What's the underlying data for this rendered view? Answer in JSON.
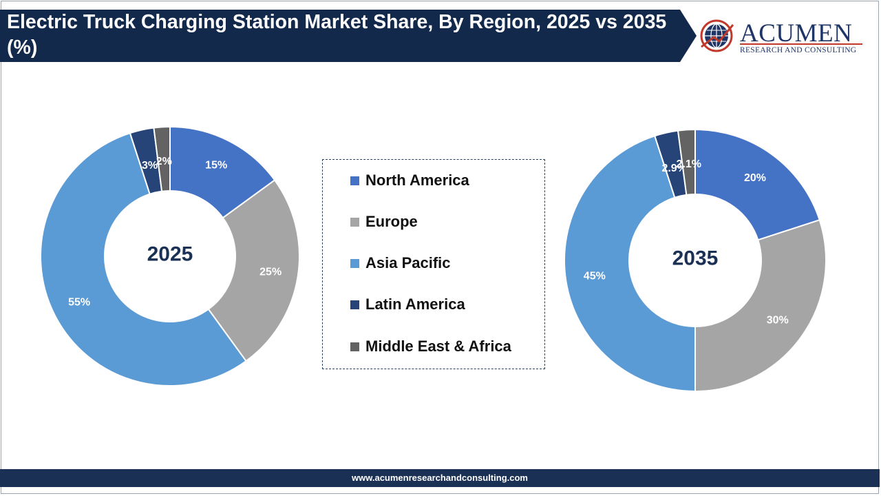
{
  "header": {
    "title": "Electric Truck Charging Station Market Share, By Region, 2025 vs 2035 (%)",
    "banner_color": "#13294b"
  },
  "logo": {
    "name": "ACUMEN",
    "tagline": "RESEARCH AND CONSULTING",
    "icon": "globe-icon",
    "colors": {
      "navy": "#1e3566",
      "red": "#c0392b"
    }
  },
  "chart_data": [
    {
      "type": "pie",
      "variant": "donut",
      "center_label": "2025",
      "categories": [
        "North America",
        "Europe",
        "Asia Pacific",
        "Latin America",
        "Middle East & Africa"
      ],
      "values": [
        15,
        25,
        55,
        3,
        2
      ],
      "labels": [
        "15%",
        "25%",
        "55%",
        "3%",
        "2%"
      ],
      "colors": [
        "#4472c4",
        "#a5a5a5",
        "#5b9bd5",
        "#264478",
        "#636363"
      ]
    },
    {
      "type": "pie",
      "variant": "donut",
      "center_label": "2035",
      "categories": [
        "North America",
        "Europe",
        "Asia Pacific",
        "Latin America",
        "Middle East & Africa"
      ],
      "values": [
        20,
        30,
        45,
        2.9,
        2.1
      ],
      "labels": [
        "20%",
        "30%",
        "45%",
        "2.9%",
        "2.1%"
      ],
      "colors": [
        "#4472c4",
        "#a5a5a5",
        "#5b9bd5",
        "#264478",
        "#636363"
      ]
    }
  ],
  "legend": {
    "placement": "center",
    "items": [
      {
        "label": "North America",
        "color": "#4472c4"
      },
      {
        "label": "Europe",
        "color": "#a5a5a5"
      },
      {
        "label": "Asia Pacific",
        "color": "#5b9bd5"
      },
      {
        "label": "Latin America",
        "color": "#264478"
      },
      {
        "label": "Middle East & Africa",
        "color": "#636363"
      }
    ]
  },
  "footer": {
    "url": "www.acumenresearchandconsulting.com",
    "color": "#1a3054"
  }
}
